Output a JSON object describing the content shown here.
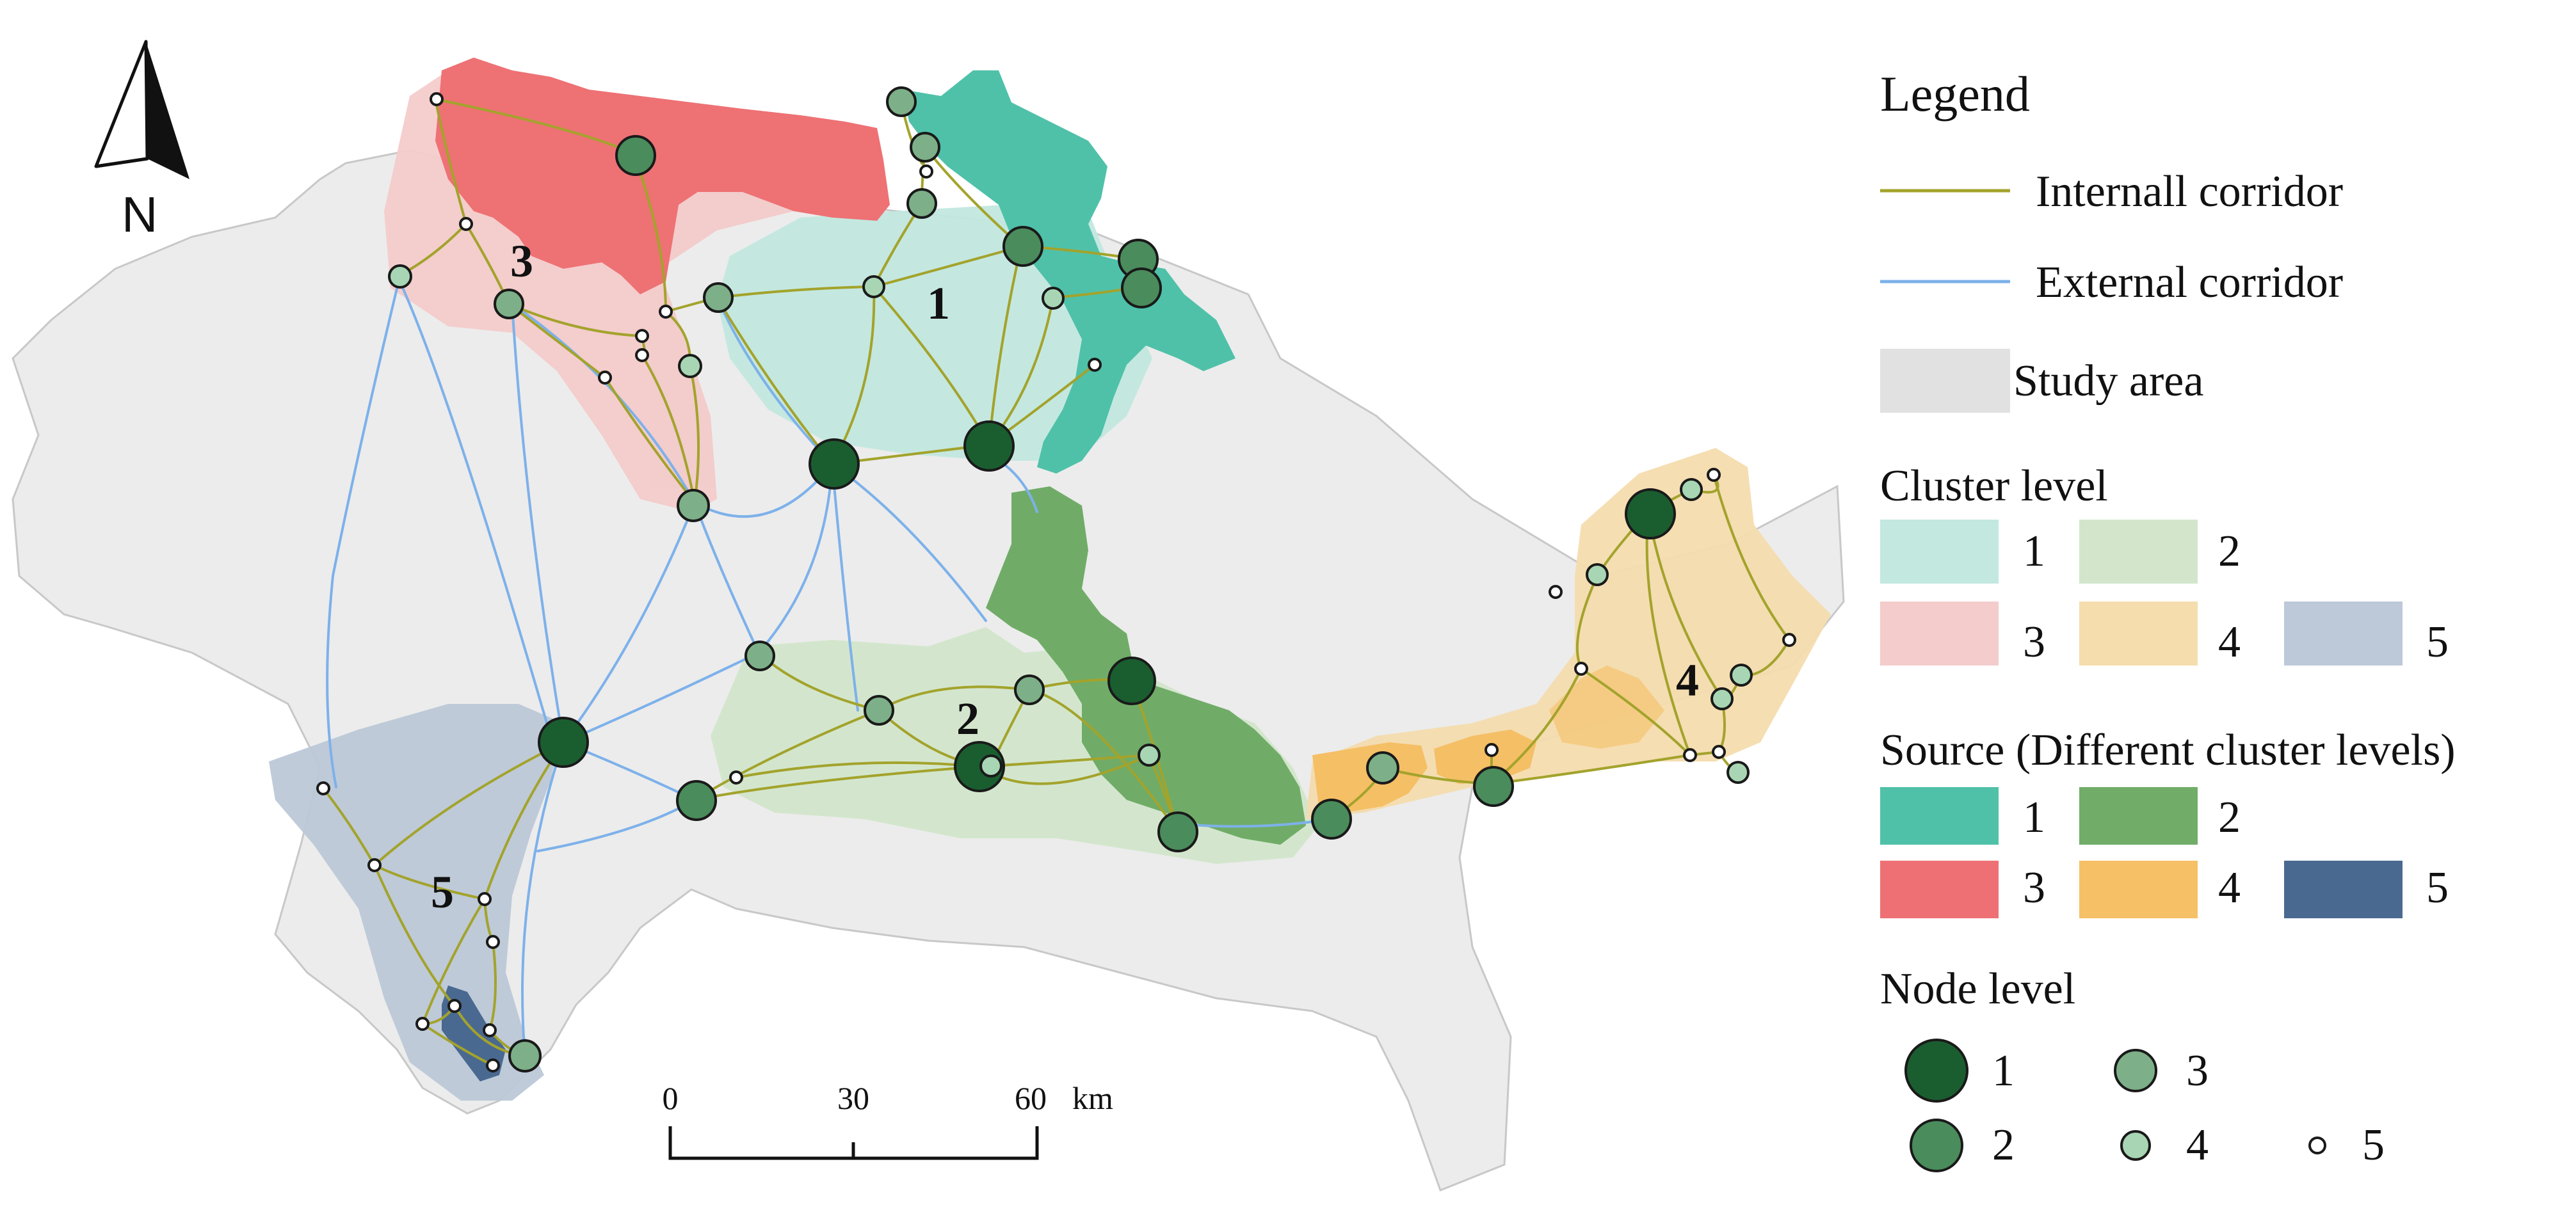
{
  "north_arrow": {
    "label": "N"
  },
  "cluster_labels": [
    "1",
    "2",
    "3",
    "4",
    "5"
  ],
  "scale_bar": {
    "ticks": [
      "0",
      "30",
      "60"
    ],
    "unit": "km"
  },
  "legend": {
    "title": "Legend",
    "internal_corridor": "Internall corridor",
    "external_corridor": "External corridor",
    "study_area": "Study area",
    "cluster_level_title": "Cluster level",
    "cluster_levels": [
      "1",
      "2",
      "3",
      "4",
      "5"
    ],
    "source_title": "Source (Different cluster levels)",
    "source_levels": [
      "1",
      "2",
      "3",
      "4",
      "5"
    ],
    "node_level_title": "Node level",
    "node_levels": [
      "1",
      "2",
      "3",
      "4",
      "5"
    ]
  },
  "colors": {
    "study_area": "#ebebeb",
    "internal_corridor": "#a3a32c",
    "external_corridor": "#7fb2ea",
    "cluster": [
      "#c3e8e0",
      "#d3e6cc",
      "#f4cccc",
      "#f5ddae",
      "#bdc9d8"
    ],
    "source": [
      "#4fc1a9",
      "#71ad68",
      "#ee7074",
      "#f5c066",
      "#4a6990"
    ],
    "node": [
      "#1a5e30",
      "#4a8c5c",
      "#7db088",
      "#a8d6b4",
      "#ffffff"
    ]
  }
}
